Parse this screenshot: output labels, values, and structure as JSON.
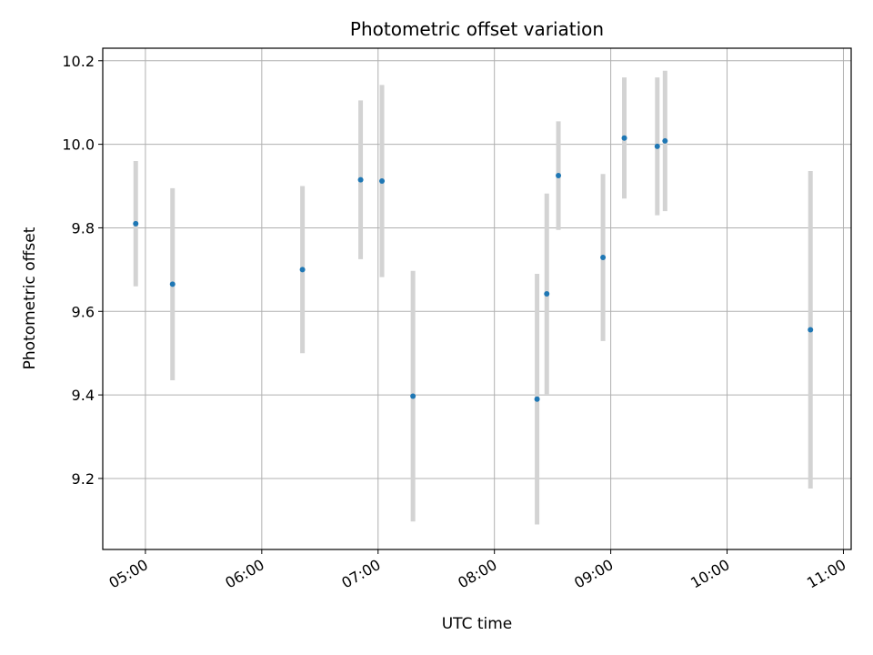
{
  "chart_data": {
    "type": "scatter",
    "title": "Photometric offset variation",
    "xlabel": "UTC time",
    "ylabel": "Photometric offset",
    "xlim": [
      "04:38",
      "11:04"
    ],
    "ylim": [
      9.03,
      10.23
    ],
    "x_ticks": [
      "05:00",
      "06:00",
      "07:00",
      "08:00",
      "09:00",
      "10:00",
      "11:00"
    ],
    "y_ticks": [
      9.2,
      9.4,
      9.6,
      9.8,
      10.0,
      10.2
    ],
    "y_tick_labels": [
      "9.2",
      "9.4",
      "9.6",
      "9.8",
      "10.0",
      "10.2"
    ],
    "grid": true,
    "colors": {
      "point": "#1f77b4",
      "errorbar": "#d3d3d3",
      "grid": "#b0b0b0"
    },
    "points": [
      {
        "x": "04:55",
        "y": 9.81,
        "err": 0.15
      },
      {
        "x": "05:14",
        "y": 9.665,
        "err": 0.23
      },
      {
        "x": "06:21",
        "y": 9.7,
        "err": 0.2
      },
      {
        "x": "06:51",
        "y": 9.915,
        "err": 0.19
      },
      {
        "x": "07:02",
        "y": 9.912,
        "err": 0.23
      },
      {
        "x": "07:18",
        "y": 9.397,
        "err": 0.3
      },
      {
        "x": "08:22",
        "y": 9.39,
        "err": 0.3
      },
      {
        "x": "08:27",
        "y": 9.642,
        "err": 0.24
      },
      {
        "x": "08:33",
        "y": 9.925,
        "err": 0.13
      },
      {
        "x": "08:56",
        "y": 9.729,
        "err": 0.2
      },
      {
        "x": "09:07",
        "y": 10.015,
        "err": 0.145
      },
      {
        "x": "09:24",
        "y": 9.995,
        "err": 0.165
      },
      {
        "x": "09:28",
        "y": 10.008,
        "err": 0.168
      },
      {
        "x": "10:43",
        "y": 9.556,
        "err": 0.38
      }
    ]
  }
}
